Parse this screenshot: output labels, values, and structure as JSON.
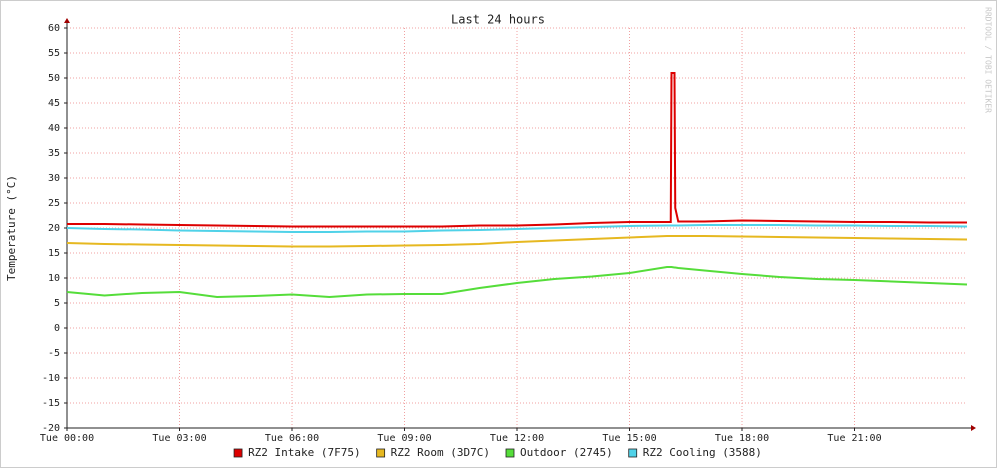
{
  "chart_data": {
    "type": "line",
    "title": "Last 24 hours",
    "ylabel": "Temperature (°C)",
    "watermark": "RRDTOOL / TOBI OETIKER",
    "x": [
      0,
      1,
      2,
      3,
      4,
      5,
      6,
      7,
      8,
      9,
      10,
      11,
      12,
      13,
      14,
      15,
      16,
      16.1,
      16.12,
      16.2,
      16.22,
      16.3,
      17,
      18,
      19,
      20,
      21,
      22,
      23,
      24
    ],
    "xlim": [
      0,
      24
    ],
    "xticks": [
      {
        "value": 0,
        "label": "Tue 00:00"
      },
      {
        "value": 3,
        "label": "Tue 03:00"
      },
      {
        "value": 6,
        "label": "Tue 06:00"
      },
      {
        "value": 9,
        "label": "Tue 09:00"
      },
      {
        "value": 12,
        "label": "Tue 12:00"
      },
      {
        "value": 15,
        "label": "Tue 15:00"
      },
      {
        "value": 18,
        "label": "Tue 18:00"
      },
      {
        "value": 21,
        "label": "Tue 21:00"
      }
    ],
    "ylim": [
      -20,
      60
    ],
    "yticks": [
      -20,
      -15,
      -10,
      -5,
      0,
      5,
      10,
      15,
      20,
      25,
      30,
      35,
      40,
      45,
      50,
      55,
      60
    ],
    "grid": true,
    "legend": "bottom",
    "series": [
      {
        "name": "RZ2 Intake (7F75)",
        "color": "#dd0000",
        "values": [
          20.8,
          20.8,
          20.7,
          20.6,
          20.5,
          20.4,
          20.3,
          20.3,
          20.3,
          20.3,
          20.3,
          20.5,
          20.5,
          20.7,
          21,
          21.2,
          21.2,
          21.2,
          51,
          51,
          24,
          21.3,
          21.3,
          21.5,
          21.4,
          21.3,
          21.2,
          21.2,
          21.1,
          21.1
        ]
      },
      {
        "name": "RZ2 Room (3D7C)",
        "color": "#e6b820",
        "values": [
          17,
          16.8,
          16.7,
          16.6,
          16.5,
          16.4,
          16.3,
          16.3,
          16.4,
          16.5,
          16.6,
          16.8,
          17.2,
          17.5,
          17.8,
          18.1,
          18.4,
          18.4,
          18.4,
          18.4,
          18.4,
          18.4,
          18.4,
          18.3,
          18.2,
          18.1,
          18,
          17.9,
          17.8,
          17.7
        ]
      },
      {
        "name": "Outdoor (2745)",
        "color": "#55dd3a",
        "values": [
          7.2,
          6.5,
          7,
          7.2,
          6.2,
          6.4,
          6.7,
          6.2,
          6.7,
          6.8,
          6.8,
          8,
          9,
          9.8,
          10.3,
          11,
          12.2,
          12.2,
          12.2,
          12.1,
          12.1,
          12,
          11.5,
          10.8,
          10.2,
          9.8,
          9.6,
          9.3,
          9,
          8.7
        ]
      },
      {
        "name": "RZ2 Cooling (3588)",
        "color": "#50d2e8",
        "values": [
          20,
          19.8,
          19.7,
          19.5,
          19.4,
          19.3,
          19.2,
          19.2,
          19.3,
          19.3,
          19.5,
          19.6,
          19.8,
          20,
          20.2,
          20.4,
          20.5,
          20.5,
          20.5,
          20.5,
          20.5,
          20.5,
          20.6,
          20.6,
          20.6,
          20.5,
          20.5,
          20.4,
          20.4,
          20.3
        ]
      }
    ]
  }
}
